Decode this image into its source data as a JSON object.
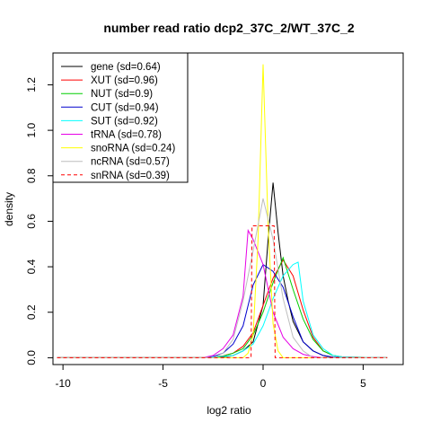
{
  "chart_data": {
    "type": "line",
    "title": "number read ratio dcp2_37C_2/WT_37C_2",
    "xlabel": "log2 ratio",
    "ylabel": "density",
    "xlim": [
      -10.5,
      7.0
    ],
    "ylim": [
      -0.03,
      1.34
    ],
    "xticks": [
      -10,
      -5,
      0,
      5
    ],
    "yticks": [
      0.0,
      0.2,
      0.4,
      0.6,
      0.8,
      1.0,
      1.2
    ],
    "xtick_labels": [
      "-10",
      "-5",
      "0",
      "5"
    ],
    "ytick_labels": [
      "0.0",
      "0.2",
      "0.4",
      "0.6",
      "0.8",
      "1.0",
      "1.2"
    ],
    "grid": false,
    "legend_position": "top-left",
    "series": [
      {
        "name": "gene (sd=0.64)",
        "color": "#000000",
        "dash": false,
        "x": [
          -10.3,
          -2.5,
          -2.0,
          -1.5,
          -1.0,
          -0.5,
          0.0,
          0.25,
          0.5,
          0.75,
          1.0,
          1.25,
          1.5,
          2.0,
          2.5,
          3.0,
          3.5,
          6.2
        ],
        "y": [
          0,
          0,
          0.003,
          0.01,
          0.03,
          0.07,
          0.23,
          0.52,
          0.77,
          0.55,
          0.36,
          0.25,
          0.16,
          0.07,
          0.03,
          0.01,
          0,
          0
        ]
      },
      {
        "name": "XUT (sd=0.96)",
        "color": "#ff0000",
        "dash": false,
        "x": [
          -10.3,
          -3.0,
          -2.5,
          -2.0,
          -1.5,
          -1.0,
          -0.5,
          0.0,
          0.5,
          1.0,
          1.5,
          2.0,
          2.5,
          3.0,
          3.5,
          4.0,
          6.2
        ],
        "y": [
          0,
          0,
          0.003,
          0.008,
          0.02,
          0.05,
          0.11,
          0.23,
          0.35,
          0.43,
          0.36,
          0.21,
          0.09,
          0.03,
          0.01,
          0.003,
          0
        ]
      },
      {
        "name": "NUT (sd=0.9)",
        "color": "#00cd00",
        "dash": false,
        "x": [
          -10.3,
          -3.0,
          -2.5,
          -2.0,
          -1.5,
          -1.0,
          -0.5,
          0.0,
          0.5,
          1.0,
          1.5,
          2.0,
          2.5,
          3.0,
          3.5,
          4.0,
          6.2
        ],
        "y": [
          0,
          0,
          0.003,
          0.007,
          0.02,
          0.04,
          0.1,
          0.2,
          0.33,
          0.44,
          0.3,
          0.17,
          0.08,
          0.03,
          0.01,
          0.003,
          0
        ]
      },
      {
        "name": "CUT (sd=0.94)",
        "color": "#0000cd",
        "dash": false,
        "x": [
          -10.3,
          -3.0,
          -2.5,
          -2.0,
          -1.5,
          -1.0,
          -0.5,
          0.0,
          0.5,
          1.0,
          1.5,
          2.0,
          2.5,
          3.0,
          3.5,
          6.2
        ],
        "y": [
          0,
          0,
          0.005,
          0.02,
          0.06,
          0.14,
          0.32,
          0.41,
          0.38,
          0.31,
          0.18,
          0.07,
          0.03,
          0.01,
          0.003,
          0
        ]
      },
      {
        "name": "SUT (sd=0.92)",
        "color": "#00ffff",
        "dash": false,
        "x": [
          -10.3,
          -3.0,
          -2.5,
          -2.0,
          -1.5,
          -1.0,
          -0.5,
          0.0,
          0.5,
          1.0,
          1.5,
          1.75,
          2.0,
          2.5,
          3.0,
          3.5,
          4.0,
          6.2
        ],
        "y": [
          0,
          0,
          0.003,
          0.006,
          0.01,
          0.03,
          0.06,
          0.14,
          0.26,
          0.36,
          0.41,
          0.42,
          0.25,
          0.1,
          0.04,
          0.01,
          0.003,
          0
        ]
      },
      {
        "name": "tRNA (sd=0.78)",
        "color": "#e600e6",
        "dash": false,
        "x": [
          -10.3,
          -3.0,
          -2.5,
          -2.0,
          -1.5,
          -1.0,
          -0.75,
          -0.5,
          0.0,
          0.5,
          1.0,
          1.5,
          2.0,
          2.5,
          3.0,
          6.2
        ],
        "y": [
          0,
          0,
          0.01,
          0.04,
          0.1,
          0.27,
          0.56,
          0.52,
          0.41,
          0.2,
          0.09,
          0.04,
          0.015,
          0.005,
          0,
          0
        ]
      },
      {
        "name": "snoRNA (sd=0.24)",
        "color": "#ffff00",
        "dash": false,
        "x": [
          -10.3,
          -1.0,
          -0.75,
          -0.5,
          -0.25,
          0.0,
          0.25,
          0.5,
          0.75,
          1.0,
          6.2
        ],
        "y": [
          0,
          0,
          0.02,
          0.1,
          0.52,
          1.29,
          0.58,
          0.15,
          0.03,
          0,
          0
        ]
      },
      {
        "name": "ncRNA (sd=0.57)",
        "color": "#bebebe",
        "dash": false,
        "x": [
          -10.3,
          -2.5,
          -2.0,
          -1.5,
          -1.0,
          -0.5,
          0.0,
          0.5,
          1.0,
          1.5,
          2.0,
          2.5,
          6.2
        ],
        "y": [
          0,
          0,
          0.02,
          0.08,
          0.25,
          0.47,
          0.7,
          0.52,
          0.26,
          0.09,
          0.03,
          0,
          0
        ]
      },
      {
        "name": "snRNA (sd=0.39)",
        "color": "#ff0000",
        "dash": true,
        "x": [
          -10.3,
          -1.0,
          -0.6,
          -0.55,
          0.5,
          0.55,
          0.6,
          1.0,
          6.2
        ],
        "y": [
          0,
          0,
          0,
          0.58,
          0.58,
          0.58,
          0,
          0,
          0
        ]
      }
    ]
  }
}
